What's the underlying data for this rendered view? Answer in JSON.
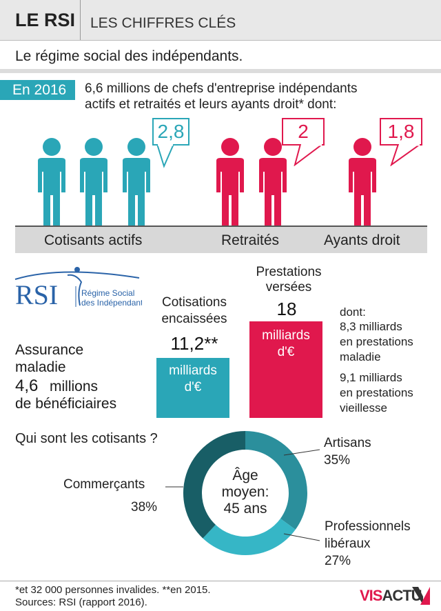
{
  "header": {
    "brand": "LE RSI",
    "title": "LES CHIFFRES CLÉS"
  },
  "subtitle": "Le régime social des indépendants.",
  "intro": {
    "year": "En 2016",
    "line1": "6,6 millions de chefs d'entreprise indépendants",
    "line2": "actifs et retraités et leurs ayants droit* dont:"
  },
  "people": {
    "groups": [
      {
        "label": "Cotisants actifs",
        "value": "2,8",
        "icons": 3,
        "color": "#2aa6b7"
      },
      {
        "label": "Retraités",
        "value": "2",
        "icons": 2,
        "color": "#e0184d"
      },
      {
        "label": "Ayants droit",
        "value": "1,8",
        "icons": 1,
        "color": "#e0184d"
      }
    ]
  },
  "logo": {
    "text": "RSI",
    "line1": "Régime Social",
    "line2": "des Indépendants"
  },
  "maladie": {
    "line1": "Assurance",
    "line2": "maladie",
    "number": "4,6",
    "unit": "millions",
    "line3": "de bénéficiaires"
  },
  "chart_data": {
    "type": "bar",
    "categories": [
      "Cotisations encaissées",
      "Prestations versées"
    ],
    "values": [
      11.2,
      18
    ],
    "value_labels": [
      "11,2**",
      "18"
    ],
    "unit_line1": "milliards",
    "unit_line2": "d'€",
    "colors": [
      "#2aa6b7",
      "#e0184d"
    ],
    "cat_lines": [
      [
        "Cotisations",
        "encaissées"
      ],
      [
        "Prestations",
        "versées"
      ]
    ],
    "breakdown": {
      "title": "dont:",
      "item1": [
        "8,3 milliards",
        "en prestations",
        "maladie"
      ],
      "item2": [
        "9,1 milliards",
        "en prestations",
        "vieillesse"
      ]
    }
  },
  "donut": {
    "title": "Qui sont les cotisants ?",
    "center": [
      "Âge",
      "moyen:",
      "45 ans"
    ],
    "slices": [
      {
        "name": "Artisans",
        "value": 35,
        "label": "35%",
        "color": "#2b8f9c"
      },
      {
        "name": "Professionnels libéraux",
        "value": 27,
        "label": "27%",
        "color": "#36b6c6"
      },
      {
        "name": "Commerçants",
        "value": 38,
        "label": "38%",
        "color": "#185e66"
      }
    ],
    "label_lines": {
      "artisans": [
        "Artisans",
        "35%"
      ],
      "liberaux": [
        "Professionnels",
        "libéraux",
        "27%"
      ],
      "commercants": [
        "Commerçants",
        "38%"
      ]
    }
  },
  "footer": {
    "note": "*et 32 000 personnes invalides. **en 2015.",
    "source": "Sources: RSI (rapport 2016).",
    "brand_a": "VIS",
    "brand_b": "ACTU"
  }
}
